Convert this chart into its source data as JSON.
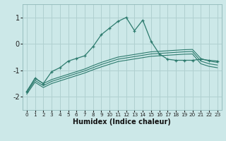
{
  "xlabel": "Humidex (Indice chaleur)",
  "ylabel": "",
  "xlim": [
    -0.5,
    23.5
  ],
  "ylim": [
    -2.5,
    1.5
  ],
  "background_color": "#cce8e8",
  "grid_color": "#b0d0d0",
  "line_color": "#2d7b6e",
  "xticks": [
    0,
    1,
    2,
    3,
    4,
    5,
    6,
    7,
    8,
    9,
    10,
    11,
    12,
    13,
    14,
    15,
    16,
    17,
    18,
    19,
    20,
    21,
    22,
    23
  ],
  "yticks": [
    -2,
    -1,
    0,
    1
  ],
  "series_main": {
    "x": [
      0,
      1,
      2,
      3,
      4,
      5,
      6,
      7,
      8,
      9,
      10,
      11,
      12,
      13,
      14,
      15,
      16,
      17,
      18,
      19,
      20,
      21,
      22,
      23
    ],
    "y": [
      -1.8,
      -1.3,
      -1.5,
      -1.05,
      -0.9,
      -0.65,
      -0.55,
      -0.45,
      -0.1,
      0.35,
      0.6,
      0.85,
      1.0,
      0.5,
      0.9,
      0.1,
      -0.38,
      -0.58,
      -0.62,
      -0.62,
      -0.62,
      -0.58,
      -0.62,
      -0.65
    ]
  },
  "series_flat": [
    [
      -1.8,
      -1.3,
      -1.5,
      -1.35,
      -1.25,
      -1.15,
      -1.05,
      -0.95,
      -0.82,
      -0.7,
      -0.6,
      -0.5,
      -0.45,
      -0.4,
      -0.35,
      -0.3,
      -0.28,
      -0.26,
      -0.24,
      -0.22,
      -0.21,
      -0.55,
      -0.65,
      -0.7
    ],
    [
      -1.85,
      -1.38,
      -1.58,
      -1.42,
      -1.32,
      -1.22,
      -1.12,
      -1.02,
      -0.9,
      -0.78,
      -0.68,
      -0.58,
      -0.53,
      -0.48,
      -0.43,
      -0.38,
      -0.36,
      -0.34,
      -0.32,
      -0.3,
      -0.29,
      -0.65,
      -0.75,
      -0.8
    ],
    [
      -1.9,
      -1.45,
      -1.65,
      -1.5,
      -1.4,
      -1.3,
      -1.2,
      -1.1,
      -0.98,
      -0.87,
      -0.77,
      -0.67,
      -0.62,
      -0.57,
      -0.52,
      -0.47,
      -0.45,
      -0.43,
      -0.41,
      -0.39,
      -0.38,
      -0.75,
      -0.85,
      -0.9
    ]
  ]
}
